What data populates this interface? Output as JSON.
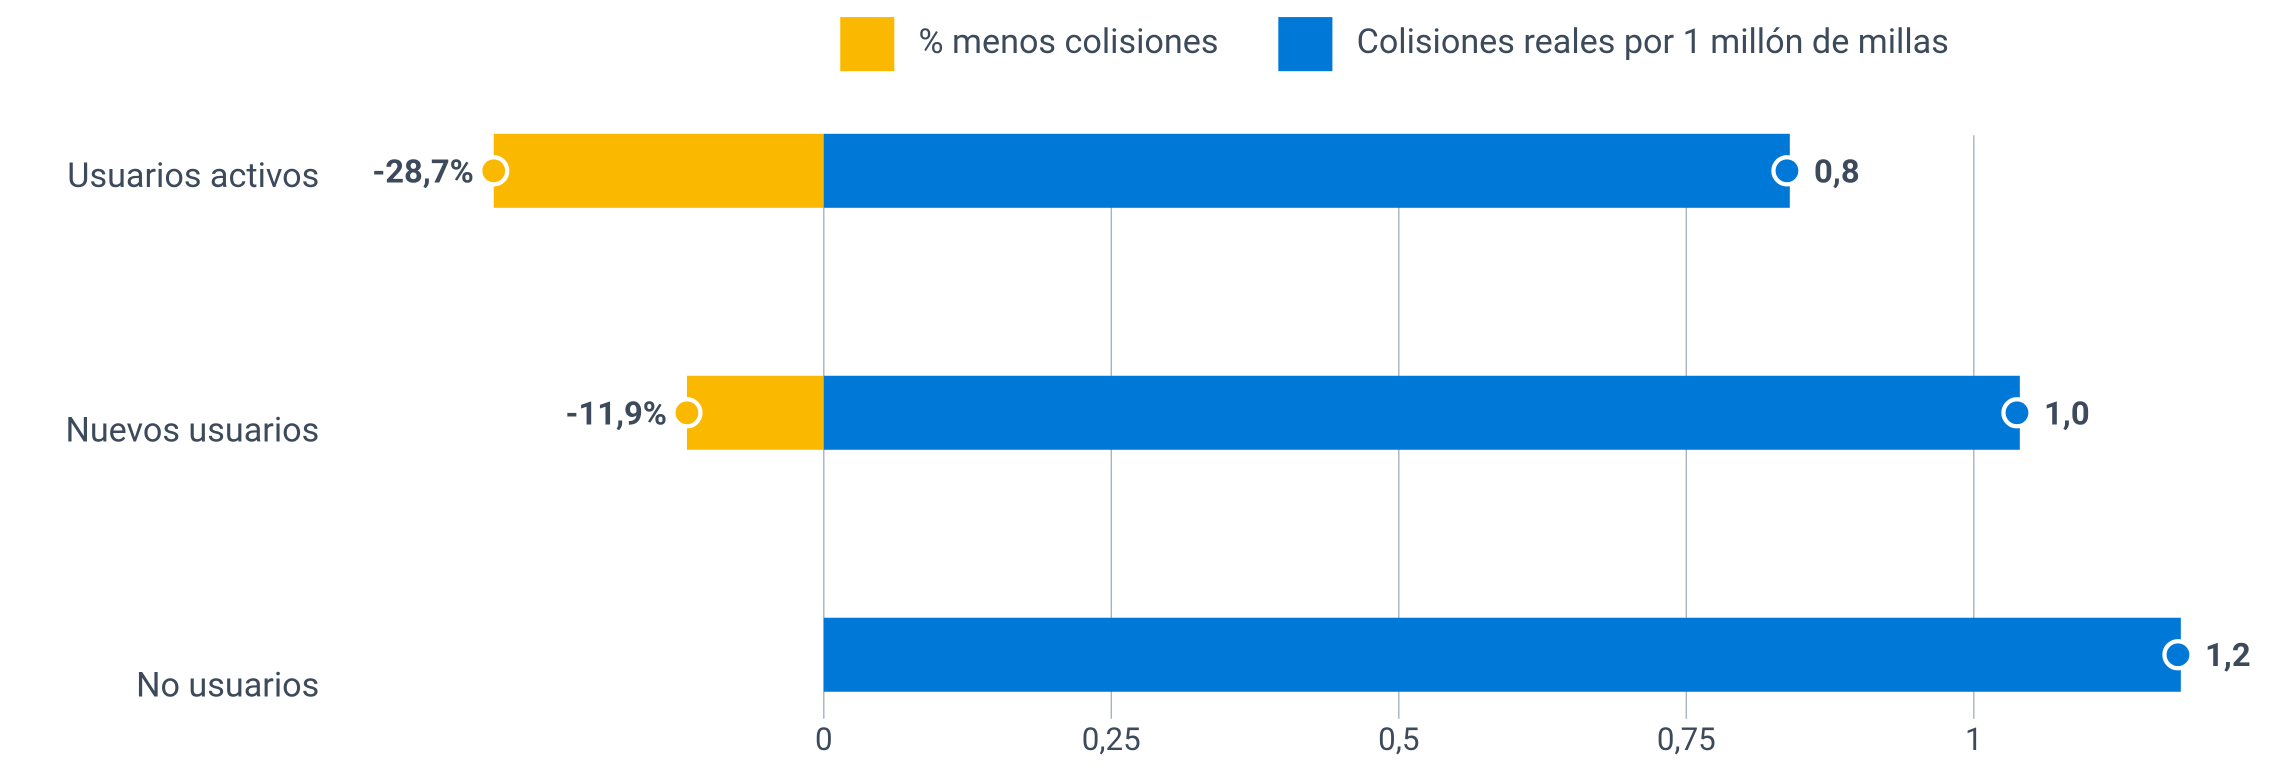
{
  "chart_data": {
    "type": "bar",
    "orientation": "horizontal",
    "categories": [
      "Usuarios activos",
      "Nuevos usuarios",
      "No usuarios"
    ],
    "series": [
      {
        "name": "% menos colisiones",
        "color": "#FBB800",
        "values": [
          -0.287,
          -0.119,
          null
        ],
        "value_labels": [
          "-28,7%",
          "-11,9%",
          null
        ]
      },
      {
        "name": "Colisiones reales por 1 millón de millas",
        "color": "#0078D7",
        "values": [
          0.84,
          1.04,
          1.18
        ],
        "value_labels": [
          "0,8",
          "1,0",
          "1,2"
        ]
      }
    ],
    "xlim": [
      -0.43,
      1.2
    ],
    "xticks": [
      0,
      {
        "value": 0.25,
        "label": "0,25"
      },
      {
        "value": 0.5,
        "label": "0,5"
      },
      {
        "value": 0.75,
        "label": "0,75"
      },
      1
    ],
    "grid": true,
    "legend": "top"
  }
}
